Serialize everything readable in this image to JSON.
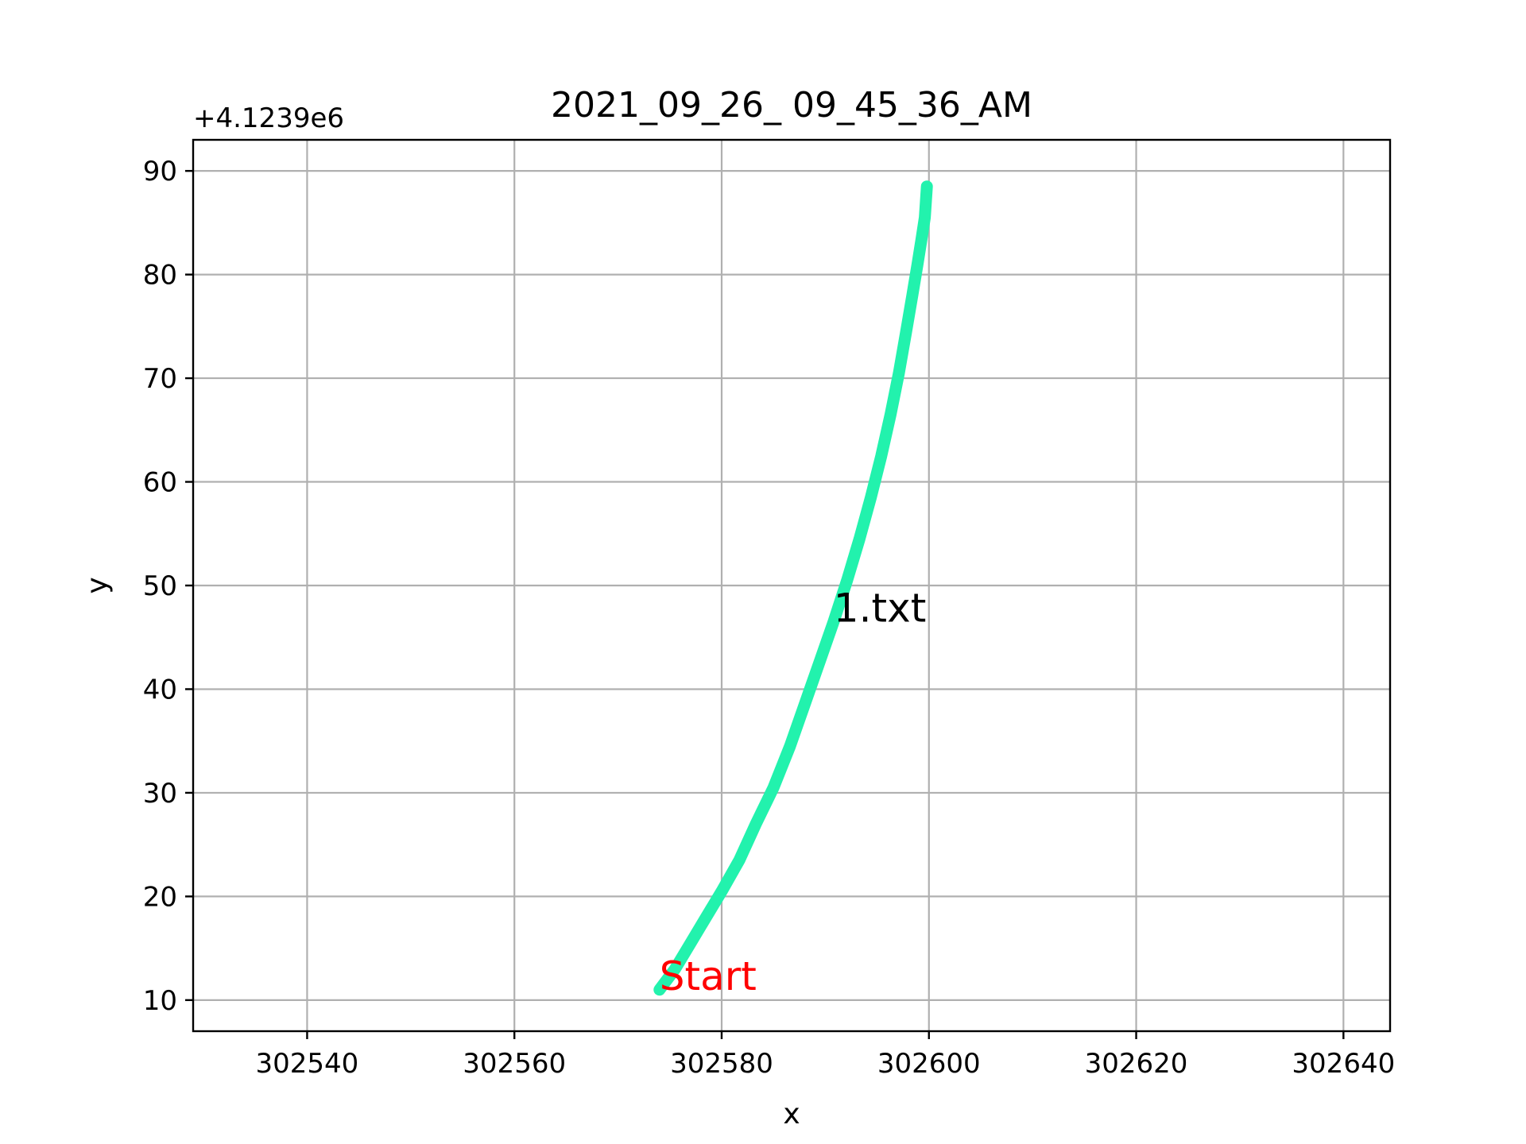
{
  "chart_data": {
    "type": "line",
    "title": "2021_09_26_ 09_45_36_AM",
    "xlabel": "x",
    "ylabel": "y",
    "y_offset_label": "+4.1239e6",
    "xlim": [
      302529,
      302644.5
    ],
    "ylim": [
      7,
      93
    ],
    "grid": true,
    "x_ticks": [
      302540,
      302560,
      302580,
      302600,
      302620,
      302640
    ],
    "x_tick_labels": [
      "302540",
      "302560",
      "302580",
      "302600",
      "302620",
      "302640"
    ],
    "y_ticks": [
      10,
      20,
      30,
      40,
      50,
      60,
      70,
      80,
      90
    ],
    "y_tick_labels": [
      "10",
      "20",
      "30",
      "40",
      "50",
      "60",
      "70",
      "80",
      "90"
    ],
    "series": [
      {
        "color": "#22f2ad",
        "x": [
          302574.0,
          302575.5,
          302577.0,
          302578.5,
          302580.0,
          302581.7,
          302583.3,
          302585.0,
          302586.6,
          302588.0,
          302589.4,
          302590.8,
          302592.1,
          302593.3,
          302594.4,
          302595.4,
          302596.3,
          302597.1,
          302597.8,
          302598.4,
          302598.9,
          302599.3,
          302599.6,
          302599.7,
          302599.8
        ],
        "y": [
          11.0,
          13.0,
          15.5,
          18.0,
          20.5,
          23.5,
          27.0,
          30.5,
          34.5,
          38.5,
          42.5,
          46.5,
          50.5,
          54.5,
          58.5,
          62.5,
          66.5,
          70.5,
          74.5,
          78.0,
          81.0,
          83.5,
          85.5,
          87.0,
          88.5
        ]
      }
    ],
    "annotations": [
      {
        "text": "Start",
        "x": 302574.0,
        "y": 11.0,
        "color": "#ff0000"
      },
      {
        "text": "1.txt",
        "x": 302590.8,
        "y": 46.5,
        "color": "#000000"
      }
    ]
  }
}
